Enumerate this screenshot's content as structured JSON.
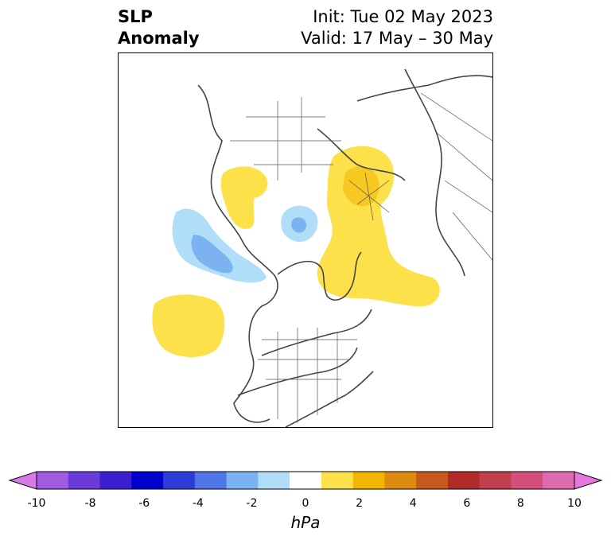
{
  "title": {
    "left_line1": "SLP",
    "left_line2": "Anomaly",
    "right_line1": "Init: Tue 02 May 2023",
    "right_line2": "Valid: 17 May – 30 May"
  },
  "colorbar": {
    "unit": "hPa",
    "levels": [
      -10,
      -9,
      -8,
      -7,
      -6,
      -5,
      -4,
      -3,
      -2,
      -1,
      1,
      2,
      3,
      4,
      5,
      6,
      7,
      8,
      9,
      10
    ],
    "colors": [
      "#d67ae6",
      "#a05ce0",
      "#6a3bd8",
      "#3d1fd0",
      "#0000cc",
      "#2b3dd6",
      "#4f75e6",
      "#7ab2f2",
      "#b0ddf8",
      "#ffffff",
      "#fde14a",
      "#f2b500",
      "#de8b12",
      "#c65a1e",
      "#b02a2a",
      "#c2404e",
      "#d2507a",
      "#de6ab0",
      "#e876dc"
    ],
    "tick_labels": [
      "-10",
      "-8",
      "-6",
      "-4",
      "-2",
      "0",
      "2",
      "4",
      "6",
      "8",
      "10"
    ]
  }
}
